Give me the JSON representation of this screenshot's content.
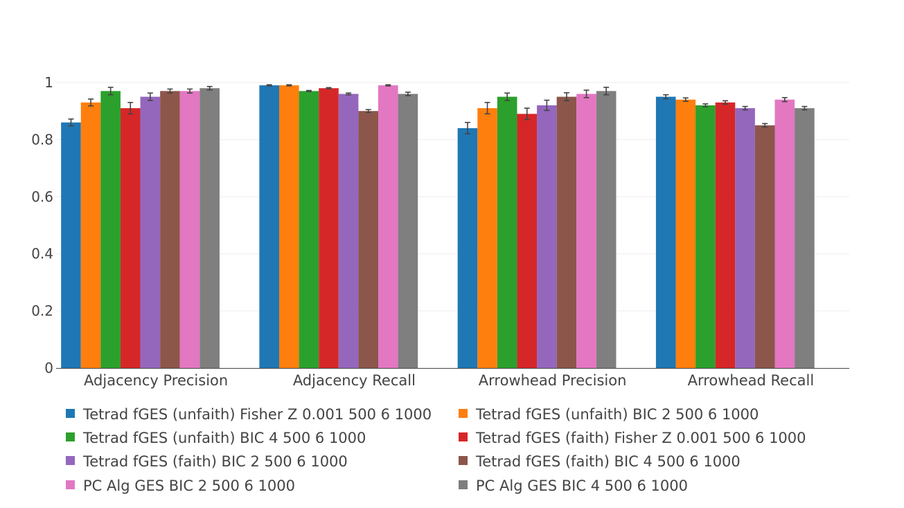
{
  "chart_data": {
    "type": "bar",
    "title": "",
    "xlabel": "",
    "ylabel": "",
    "ylim": [
      0,
      1
    ],
    "yticks": [
      0,
      0.2,
      0.4,
      0.6,
      0.8,
      1
    ],
    "ytick_labels": [
      "0",
      "0.2",
      "0.4",
      "0.6",
      "0.8",
      "1"
    ],
    "grid": true,
    "legend_position": "bottom",
    "categories": [
      "Adjacency Precision",
      "Adjacency Recall",
      "Arrowhead Precision",
      "Arrowhead Recall"
    ],
    "series": [
      {
        "name": "Tetrad fGES (unfaith) Fisher Z 0.001 500 6 1000",
        "color": "#1f77b4",
        "values": [
          0.86,
          0.99,
          0.84,
          0.95
        ],
        "errors": [
          0.012,
          0.002,
          0.02,
          0.007
        ]
      },
      {
        "name": "Tetrad fGES (unfaith) BIC 2 500 6 1000",
        "color": "#ff7f0e",
        "values": [
          0.93,
          0.99,
          0.91,
          0.94
        ],
        "errors": [
          0.012,
          0.002,
          0.02,
          0.006
        ]
      },
      {
        "name": "Tetrad fGES (unfaith) BIC 4 500 6 1000",
        "color": "#2ca02c",
        "values": [
          0.97,
          0.97,
          0.95,
          0.92
        ],
        "errors": [
          0.013,
          0.002,
          0.013,
          0.005
        ]
      },
      {
        "name": "Tetrad fGES (faith) Fisher Z 0.001 500 6 1000",
        "color": "#d62728",
        "values": [
          0.91,
          0.98,
          0.89,
          0.93
        ],
        "errors": [
          0.02,
          0.002,
          0.02,
          0.006
        ]
      },
      {
        "name": "Tetrad fGES (faith) BIC 2 500 6 1000",
        "color": "#9467bd",
        "values": [
          0.95,
          0.96,
          0.92,
          0.91
        ],
        "errors": [
          0.013,
          0.003,
          0.018,
          0.006
        ]
      },
      {
        "name": "Tetrad fGES (faith) BIC 4 500 6 1000",
        "color": "#8c564b",
        "values": [
          0.97,
          0.9,
          0.95,
          0.85
        ],
        "errors": [
          0.007,
          0.005,
          0.014,
          0.006
        ]
      },
      {
        "name": "PC Alg GES BIC 2 500 6 1000",
        "color": "#e377c2",
        "values": [
          0.97,
          0.99,
          0.96,
          0.94
        ],
        "errors": [
          0.007,
          0.002,
          0.013,
          0.007
        ]
      },
      {
        "name": "PC Alg GES BIC 4 500 6 1000",
        "color": "#7f7f7f",
        "values": [
          0.98,
          0.96,
          0.97,
          0.91
        ],
        "errors": [
          0.006,
          0.006,
          0.013,
          0.006
        ]
      }
    ]
  }
}
